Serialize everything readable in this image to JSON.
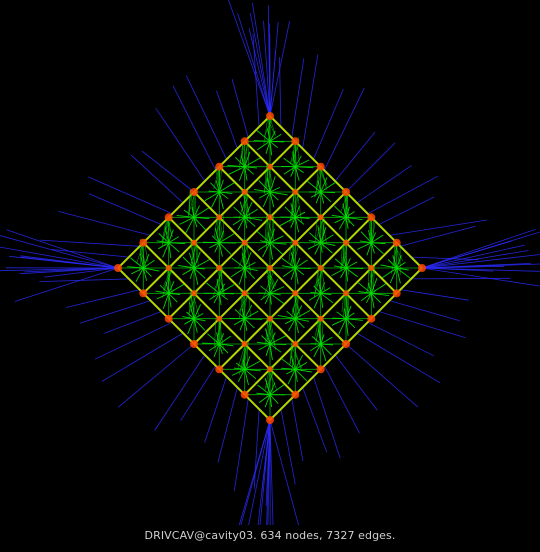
{
  "caption": "DRIVCAV@cavity03. 634 nodes, 7327 edges.",
  "colors": {
    "background": "#000000",
    "edge_short": "#00e000",
    "edge_mid": "#c8f000",
    "edge_long": "#2a2aff",
    "node": "#ff4400",
    "caption": "#cfcfcf"
  }
}
